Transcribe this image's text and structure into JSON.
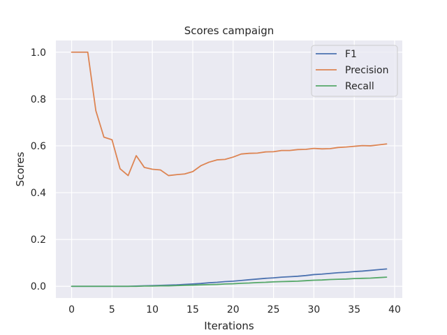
{
  "chart_data": {
    "type": "line",
    "title": "Scores campaign",
    "xlabel": "Iterations",
    "ylabel": "Scores",
    "xlim": [
      -1.95,
      40.95
    ],
    "ylim": [
      -0.05,
      1.05
    ],
    "xticks": [
      0,
      5,
      10,
      15,
      20,
      25,
      30,
      35,
      40
    ],
    "yticks": [
      0.0,
      0.2,
      0.4,
      0.6,
      0.8,
      1.0
    ],
    "xtick_labels": [
      "0",
      "5",
      "10",
      "15",
      "20",
      "25",
      "30",
      "35",
      "40"
    ],
    "ytick_labels": [
      "0.0",
      "0.2",
      "0.4",
      "0.6",
      "0.8",
      "1.0"
    ],
    "grid": true,
    "legend_position": "top-right",
    "x": [
      0,
      1,
      2,
      3,
      4,
      5,
      6,
      7,
      8,
      9,
      10,
      11,
      12,
      13,
      14,
      15,
      16,
      17,
      18,
      19,
      20,
      21,
      22,
      23,
      24,
      25,
      26,
      27,
      28,
      29,
      30,
      31,
      32,
      33,
      34,
      35,
      36,
      37,
      38,
      39
    ],
    "series": [
      {
        "name": "F1",
        "color": "#4c72b0",
        "values": [
          0.0,
          0.0,
          0.0,
          0.0,
          0.0,
          0.0,
          0.0,
          0.0,
          0.001,
          0.002,
          0.003,
          0.004,
          0.005,
          0.006,
          0.008,
          0.01,
          0.012,
          0.015,
          0.017,
          0.02,
          0.022,
          0.025,
          0.028,
          0.031,
          0.034,
          0.036,
          0.039,
          0.041,
          0.043,
          0.046,
          0.05,
          0.052,
          0.055,
          0.058,
          0.06,
          0.063,
          0.065,
          0.068,
          0.071,
          0.074
        ]
      },
      {
        "name": "Precision",
        "color": "#dd8452",
        "values": [
          1.0,
          1.0,
          1.0,
          0.75,
          0.637,
          0.626,
          0.502,
          0.473,
          0.558,
          0.508,
          0.5,
          0.497,
          0.473,
          0.477,
          0.48,
          0.49,
          0.515,
          0.53,
          0.54,
          0.542,
          0.552,
          0.565,
          0.568,
          0.569,
          0.574,
          0.575,
          0.58,
          0.58,
          0.584,
          0.585,
          0.589,
          0.587,
          0.588,
          0.593,
          0.595,
          0.598,
          0.601,
          0.6,
          0.604,
          0.608
        ]
      },
      {
        "name": "Recall",
        "color": "#55a868",
        "values": [
          0.0,
          0.0,
          0.0,
          0.0,
          0.0,
          0.0,
          0.0,
          0.0,
          0.0,
          0.001,
          0.001,
          0.002,
          0.002,
          0.003,
          0.004,
          0.005,
          0.006,
          0.007,
          0.008,
          0.01,
          0.011,
          0.013,
          0.014,
          0.016,
          0.017,
          0.019,
          0.02,
          0.021,
          0.022,
          0.024,
          0.026,
          0.027,
          0.029,
          0.03,
          0.031,
          0.033,
          0.034,
          0.035,
          0.037,
          0.039
        ]
      }
    ]
  }
}
